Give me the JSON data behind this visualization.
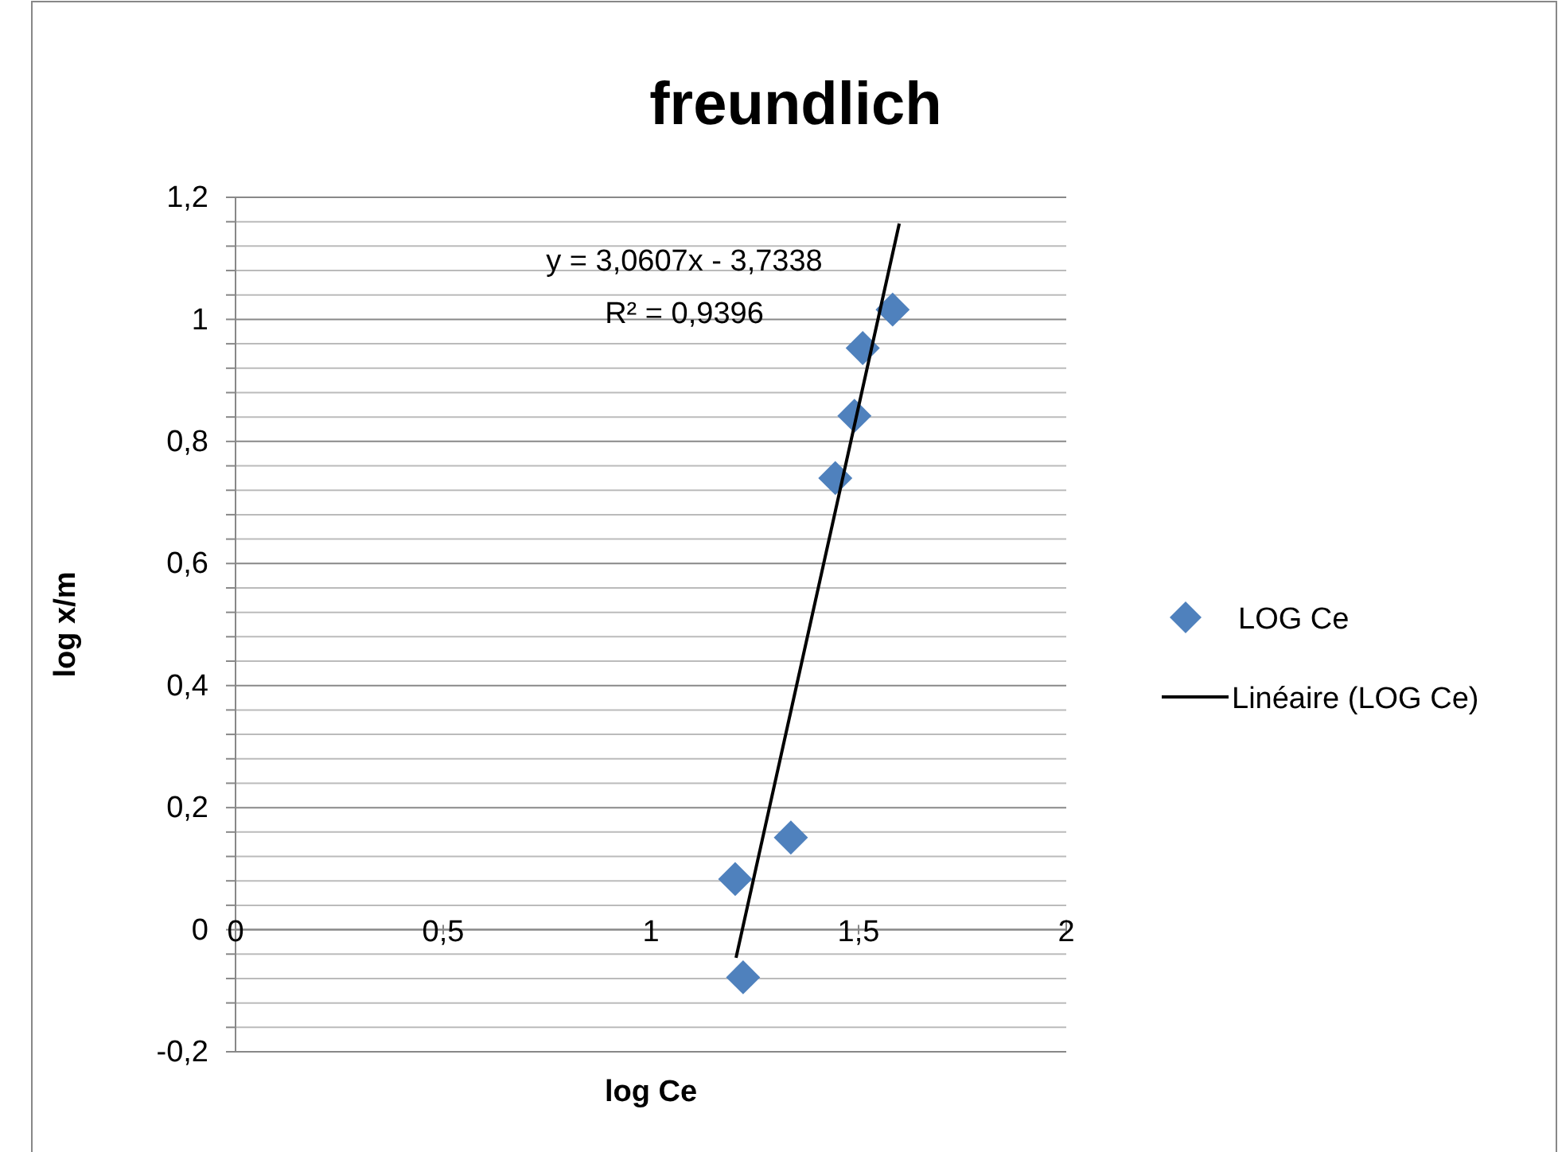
{
  "chart_data": {
    "type": "scatter",
    "title": "freundlich",
    "xlabel": "log Ce",
    "ylabel": "log x/m",
    "annotations": [
      "y = 3,0607x - 3,7338",
      "R² = 0,9396"
    ],
    "xlim": [
      0,
      2
    ],
    "ylim": [
      -0.2,
      1.2
    ],
    "xticks": [
      0,
      {
        "value": 0.5,
        "label": "0,5"
      },
      1,
      {
        "value": 1.5,
        "label": "1,5"
      },
      2
    ],
    "yticks": [
      {
        "value": -0.2,
        "label": "-0,2"
      },
      {
        "value": -0.16,
        "label": null
      },
      {
        "value": -0.12,
        "label": null
      },
      {
        "value": -0.08,
        "label": null
      },
      {
        "value": -0.04,
        "label": null
      },
      0,
      {
        "value": 0.04,
        "label": null
      },
      {
        "value": 0.08,
        "label": null
      },
      {
        "value": 0.12,
        "label": null
      },
      {
        "value": 0.16,
        "label": null
      },
      {
        "value": 0.2,
        "label": "0,2"
      },
      {
        "value": 0.24,
        "label": null
      },
      {
        "value": 0.28,
        "label": null
      },
      {
        "value": 0.32,
        "label": null
      },
      {
        "value": 0.36,
        "label": null
      },
      {
        "value": 0.4,
        "label": "0,4"
      },
      {
        "value": 0.44,
        "label": null
      },
      {
        "value": 0.48,
        "label": null
      },
      {
        "value": 0.52,
        "label": null
      },
      {
        "value": 0.56,
        "label": null
      },
      {
        "value": 0.6,
        "label": "0,6"
      },
      {
        "value": 0.64,
        "label": null
      },
      {
        "value": 0.68,
        "label": null
      },
      {
        "value": 0.72,
        "label": null
      },
      {
        "value": 0.76,
        "label": null
      },
      {
        "value": 0.8,
        "label": "0,8"
      },
      {
        "value": 0.84,
        "label": null
      },
      {
        "value": 0.88,
        "label": null
      },
      {
        "value": 0.92,
        "label": null
      },
      {
        "value": 0.96,
        "label": null
      },
      1,
      {
        "value": 1.04,
        "label": null
      },
      {
        "value": 1.08,
        "label": null
      },
      {
        "value": 1.12,
        "label": null
      },
      {
        "value": 1.16,
        "label": null
      },
      {
        "value": 1.2,
        "label": "1,2"
      }
    ],
    "grid": "y",
    "legend": "right",
    "marker": "diamond",
    "series": [
      {
        "name": "LOG Ce",
        "color": "#4f81bd",
        "x": [
          1.203,
          1.222,
          1.337,
          1.444,
          1.49,
          1.51,
          1.582
        ],
        "values": [
          0.083,
          -0.078,
          0.151,
          0.74,
          0.842,
          0.953,
          1.016
        ]
      },
      {
        "name": "Linéaire (LOG Ce)",
        "type": "line",
        "marker": "none",
        "color": "#000000",
        "x": [
          1.205,
          1.598
        ],
        "values": [
          -0.046,
          1.157
        ]
      }
    ]
  }
}
